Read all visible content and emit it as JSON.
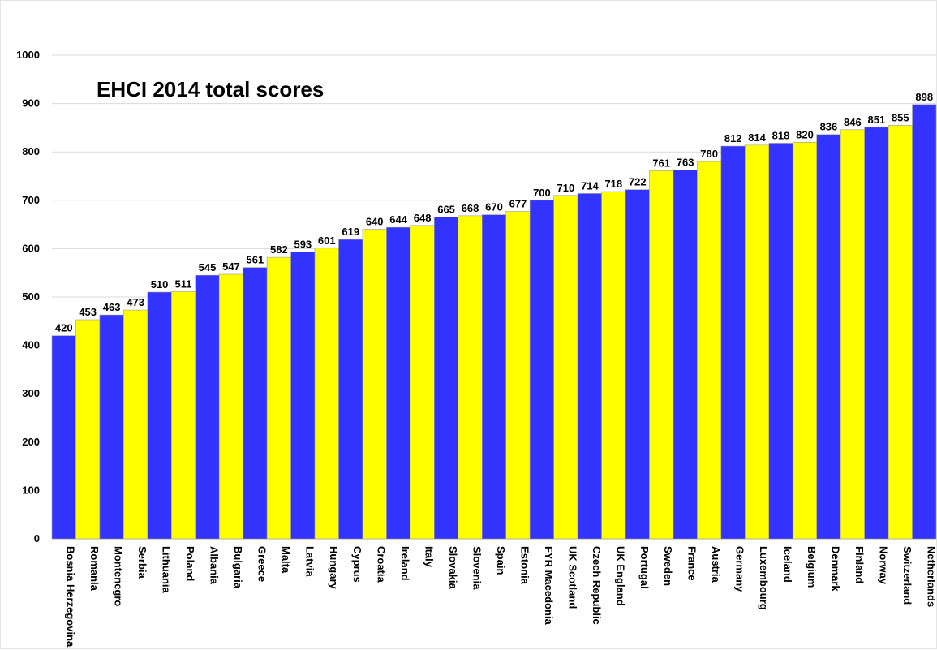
{
  "chart_data": {
    "type": "bar",
    "title": "EHCI 2014 total scores",
    "xlabel": "",
    "ylabel": "",
    "ylim": [
      0,
      1000
    ],
    "yticks": [
      0,
      100,
      200,
      300,
      400,
      500,
      600,
      700,
      800,
      900,
      1000
    ],
    "grid": true,
    "legend": "none",
    "categories": [
      "Bosnia Herzegovina",
      "Romania",
      "Montenegro",
      "Serbia",
      "Lithuania",
      "Poland",
      "Albania",
      "Bulgaria",
      "Greece",
      "Malta",
      "Latvia",
      "Hungary",
      "Cyprus",
      "Croatia",
      "Ireland",
      "Italy",
      "Slovakia",
      "Slovenia",
      "Spain",
      "Estonia",
      "FYR Macedonia",
      "UK Scotland",
      "Czech Republic",
      "UK England",
      "Portugal",
      "Sweden",
      "France",
      "Austria",
      "Germany",
      "Luxembourg",
      "Iceland",
      "Belgium",
      "Denmark",
      "Finland",
      "Norway",
      "Switzerland",
      "Netherlands"
    ],
    "values": [
      420,
      453,
      463,
      473,
      510,
      511,
      545,
      547,
      561,
      582,
      593,
      601,
      619,
      640,
      644,
      648,
      665,
      668,
      670,
      677,
      700,
      710,
      714,
      718,
      722,
      761,
      763,
      780,
      812,
      814,
      818,
      820,
      836,
      846,
      851,
      855,
      898
    ],
    "colors": [
      "#3333ff",
      "#ffff00"
    ],
    "bar_outline": "#9a9a9a",
    "grid_color": "#d9d9d9"
  }
}
